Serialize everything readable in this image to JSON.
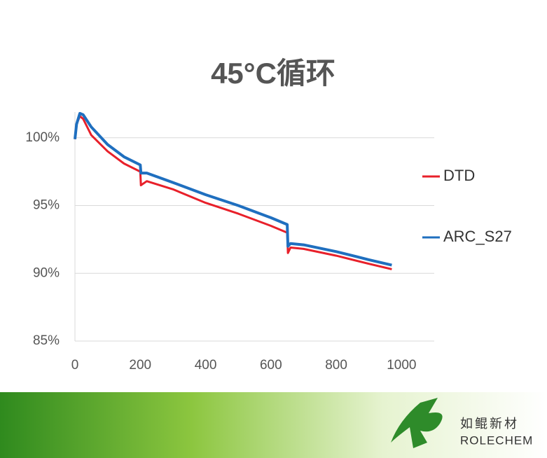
{
  "chart_data": {
    "type": "line",
    "title": "45°C循环",
    "x": [
      0,
      5,
      15,
      25,
      50,
      100,
      150,
      200,
      202,
      220,
      300,
      400,
      500,
      600,
      650,
      652,
      660,
      700,
      800,
      900,
      970
    ],
    "series": [
      {
        "name": "DTD",
        "color": "#e8202a",
        "values": [
          99.9,
          101.0,
          101.6,
          101.4,
          100.2,
          99.0,
          98.1,
          97.5,
          96.5,
          96.8,
          96.2,
          95.2,
          94.4,
          93.5,
          93.0,
          91.5,
          91.9,
          91.8,
          91.3,
          90.7,
          90.3
        ]
      },
      {
        "name": "ARC_S27",
        "color": "#1f6fbf",
        "values": [
          99.9,
          101.0,
          101.8,
          101.7,
          100.8,
          99.5,
          98.6,
          98.0,
          97.4,
          97.4,
          96.7,
          95.8,
          95.0,
          94.1,
          93.6,
          92.0,
          92.2,
          92.1,
          91.6,
          91.0,
          90.6
        ]
      }
    ],
    "xlim": [
      0,
      1100
    ],
    "xticks": [
      0,
      200,
      400,
      600,
      800,
      1000
    ],
    "ylim": [
      85,
      101.9
    ],
    "yticks": [
      {
        "value": 85,
        "label": "85%"
      },
      {
        "value": 90,
        "label": "90%"
      },
      {
        "value": 95,
        "label": "95%"
      },
      {
        "value": 100,
        "label": "100%"
      }
    ],
    "grid": true,
    "legend": "right"
  },
  "logo": {
    "name": "如鲲新材",
    "subtitle": "ROLECHEM"
  }
}
